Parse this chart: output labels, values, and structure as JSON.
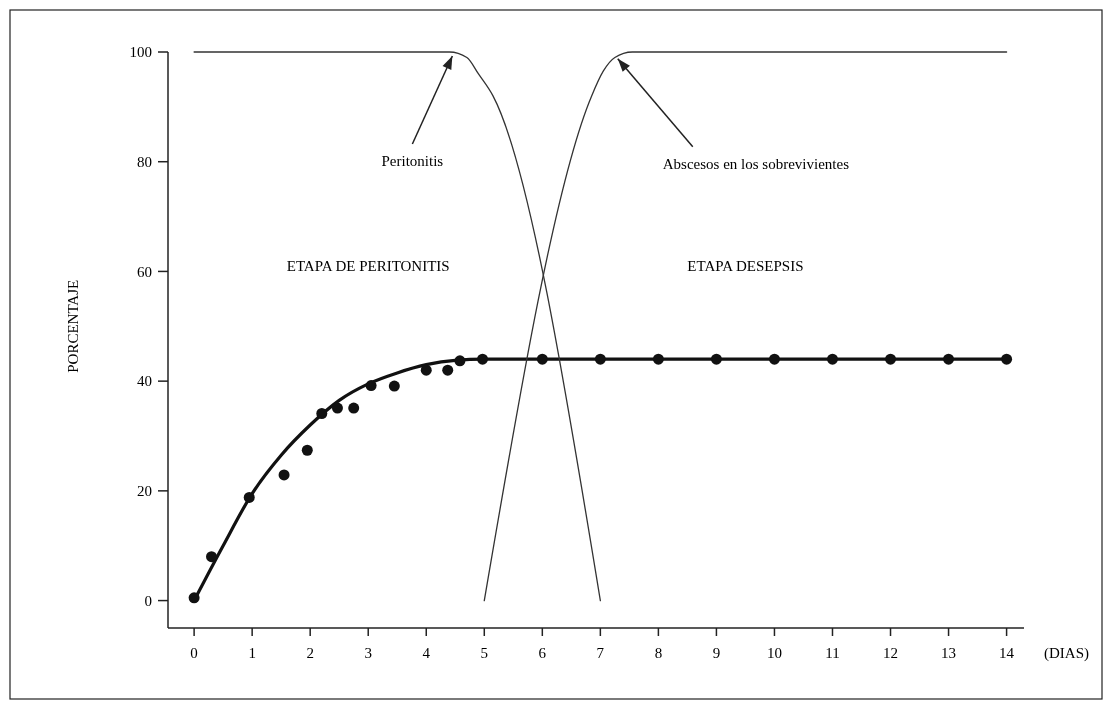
{
  "chart_data": {
    "type": "line",
    "xlabel": "(DIAS)",
    "ylabel": "PORCENTAJE",
    "xlim": [
      -0.45,
      14.3
    ],
    "ylim": [
      -5,
      100
    ],
    "xticks": [
      0,
      1,
      2,
      3,
      4,
      5,
      6,
      7,
      8,
      9,
      10,
      11,
      12,
      13,
      14
    ],
    "yticks": [
      0,
      20,
      40,
      60,
      80,
      100
    ],
    "grid": false,
    "series": [
      {
        "color": "#111111",
        "x": [
          0,
          0.5,
          1,
          1.5,
          2,
          2.5,
          3,
          3.5,
          4,
          4.5,
          5,
          14
        ],
        "values": [
          0,
          10,
          19.5,
          26.5,
          32,
          36.5,
          39.5,
          41.5,
          43,
          43.8,
          44,
          44
        ]
      },
      {
        "type": "scatter",
        "marker": "circle",
        "color": "#111111",
        "x": [
          0,
          0.3,
          0.95,
          1.55,
          1.95,
          2.2,
          2.47,
          2.75,
          3.05,
          3.45,
          4,
          4.37,
          4.58,
          4.97,
          6,
          7,
          8,
          9,
          10,
          11,
          12,
          13,
          14
        ],
        "values": [
          0.5,
          8,
          18.8,
          22.9,
          27.4,
          34.1,
          35.1,
          35.1,
          39.2,
          39.1,
          42,
          42,
          43.7,
          44,
          44,
          44,
          44,
          44,
          44,
          44,
          44,
          44,
          44
        ]
      },
      {
        "color": "#333333",
        "x": [
          0,
          4.4,
          4.7,
          4.9,
          5.15,
          7
        ],
        "values": [
          100,
          100,
          99,
          96,
          92,
          0
        ]
      },
      {
        "color": "#333333",
        "x": [
          5,
          6.85,
          7.05,
          7.25,
          7.55,
          14
        ],
        "values": [
          0,
          92,
          96.5,
          99,
          100,
          100
        ]
      }
    ],
    "annotations": [
      {
        "text": "Peritonitis",
        "x": 4.45,
        "y": 100
      },
      {
        "text": "Abscesos en los sobrevivientes",
        "x": 7.3,
        "y": 99.5
      },
      "ETAPA DE PERITONITIS",
      "ETAPA DESEPSIS"
    ]
  }
}
